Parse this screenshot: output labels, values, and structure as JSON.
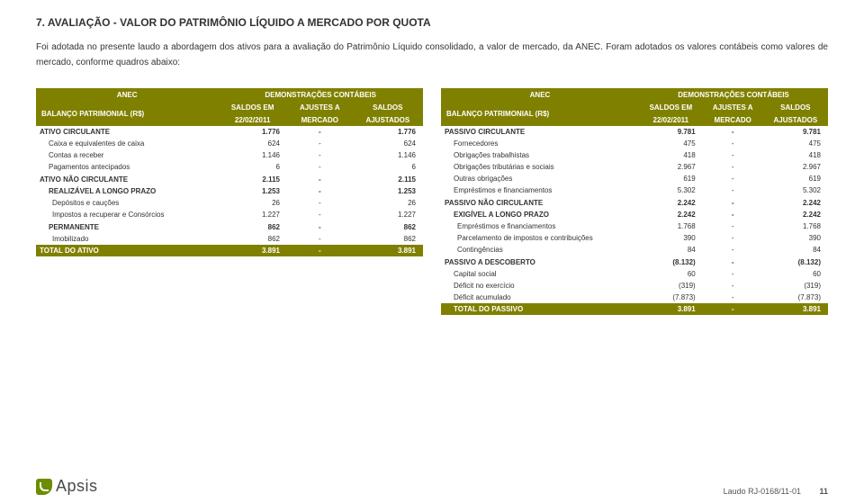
{
  "section_title": "7. AVALIAÇÃO - VALOR DO PATRIMÔNIO LÍQUIDO A MERCADO POR QUOTA",
  "para1": "Foi adotada no presente laudo a abordagem dos ativos para a avaliação do Patrimônio Líquido consolidado, a valor de mercado, da ANEC. Foram adotados os valores contábeis como valores de mercado, conforme quadros abaixo:",
  "th_anec": "ANEC",
  "th_demo": "DEMONSTRAÇÕES CONTÁBEIS",
  "th_bal": "BALANÇO PATRIMONIAL (R$)",
  "th_saldos_em": "SALDOS EM",
  "th_date": "22/02/2011",
  "th_ajustes": "AJUSTES A",
  "th_mercado": "MERCADO",
  "th_saldos": "SALDOS",
  "th_ajustados": "AJUSTADOS",
  "left": {
    "rows": [
      {
        "l": "ATIVO CIRCULANTE",
        "a": "1.776",
        "b": "-",
        "c": "1.776",
        "bold": true
      },
      {
        "l": "Caixa e equivalentes de caixa",
        "a": "624",
        "b": "-",
        "c": "624",
        "ind": 1
      },
      {
        "l": "Contas a receber",
        "a": "1.146",
        "b": "-",
        "c": "1.146",
        "ind": 1
      },
      {
        "l": "Pagamentos antecipados",
        "a": "6",
        "b": "-",
        "c": "6",
        "ind": 1
      },
      {
        "l": "ATIVO NÃO CIRCULANTE",
        "a": "2.115",
        "b": "-",
        "c": "2.115",
        "bold": true,
        "grp": true
      },
      {
        "l": "REALIZÁVEL A LONGO PRAZO",
        "a": "1.253",
        "b": "-",
        "c": "1.253",
        "bold": true,
        "ind": 1
      },
      {
        "l": "Depósitos e cauções",
        "a": "26",
        "b": "-",
        "c": "26",
        "ind": 2
      },
      {
        "l": "Impostos a recuperar e Consórcios",
        "a": "1.227",
        "b": "-",
        "c": "1.227",
        "ind": 2
      },
      {
        "l": "PERMANENTE",
        "a": "862",
        "b": "-",
        "c": "862",
        "bold": true,
        "ind": 1,
        "grp": true
      },
      {
        "l": "Imobilizado",
        "a": "862",
        "b": "-",
        "c": "862",
        "ind": 2
      }
    ],
    "total": {
      "l": "TOTAL DO ATIVO",
      "a": "3.891",
      "b": "-",
      "c": "3.891"
    }
  },
  "right": {
    "rows": [
      {
        "l": "PASSIVO CIRCULANTE",
        "a": "9.781",
        "b": "-",
        "c": "9.781",
        "bold": true
      },
      {
        "l": "Fornecedores",
        "a": "475",
        "b": "-",
        "c": "475",
        "ind": 1
      },
      {
        "l": "Obrigações trabalhistas",
        "a": "418",
        "b": "-",
        "c": "418",
        "ind": 1
      },
      {
        "l": "Obrigações tributárias e sociais",
        "a": "2.967",
        "b": "-",
        "c": "2.967",
        "ind": 1
      },
      {
        "l": "Outras obrigações",
        "a": "619",
        "b": "-",
        "c": "619",
        "ind": 1
      },
      {
        "l": "Empréstimos e financiamentos",
        "a": "5.302",
        "b": "-",
        "c": "5.302",
        "ind": 1
      },
      {
        "l": "PASSIVO NÃO CIRCULANTE",
        "a": "2.242",
        "b": "-",
        "c": "2.242",
        "bold": true,
        "grp": true
      },
      {
        "l": "EXIGÍVEL A LONGO PRAZO",
        "a": "2.242",
        "b": "-",
        "c": "2.242",
        "bold": true,
        "ind": 1
      },
      {
        "l": "Empréstimos e financiamentos",
        "a": "1.768",
        "b": "-",
        "c": "1.768",
        "ind": 2
      },
      {
        "l": "Parcelamento de impostos e contribuições",
        "a": "390",
        "b": "-",
        "c": "390",
        "ind": 2
      },
      {
        "l": "Contingências",
        "a": "84",
        "b": "-",
        "c": "84",
        "ind": 2
      },
      {
        "l": "PASSIVO A DESCOBERTO",
        "a": "(8.132)",
        "b": "-",
        "c": "(8.132)",
        "bold": true,
        "grp": true
      },
      {
        "l": "Capital social",
        "a": "60",
        "b": "-",
        "c": "60",
        "ind": 1
      },
      {
        "l": "Déficit no exercício",
        "a": "(319)",
        "b": "-",
        "c": "(319)",
        "ind": 1
      },
      {
        "l": "Déficit acumulado",
        "a": "(7.873)",
        "b": "-",
        "c": "(7.873)",
        "ind": 1
      }
    ],
    "total": {
      "l": "TOTAL DO PASSIVO",
      "a": "3.891",
      "b": "-",
      "c": "3.891"
    }
  },
  "logo_text": "Apsis",
  "footer_ref": "Laudo RJ-0168/11-01",
  "page_num": "11"
}
